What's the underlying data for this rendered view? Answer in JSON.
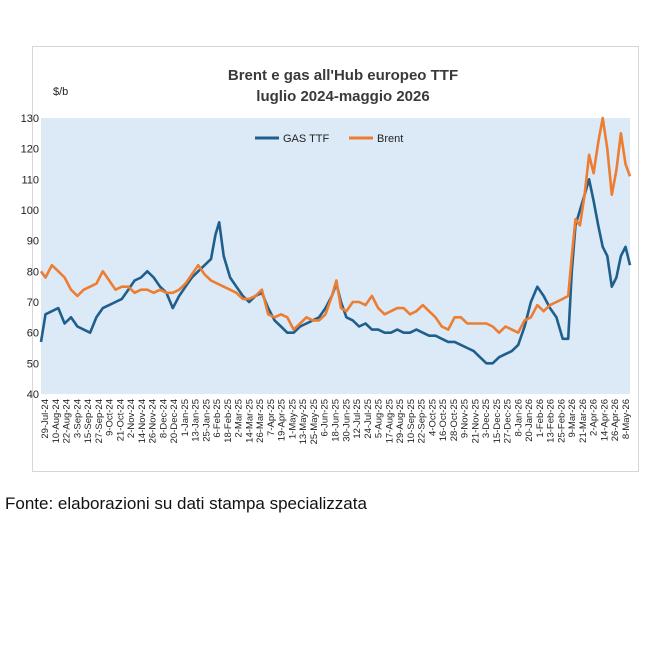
{
  "chart_data": {
    "type": "line",
    "title": "Brent e gas all'Hub europeo TTF",
    "subtitle": "luglio 2024-maggio 2026",
    "ylabel": "$/b",
    "ylim": [
      40,
      130
    ],
    "yticks": [
      40,
      50,
      60,
      70,
      80,
      90,
      100,
      110,
      120,
      130
    ],
    "xlim": [
      "2024-07-29",
      "2026-05-08"
    ],
    "xtick_labels": [
      "29-Jul-24",
      "10-Aug-24",
      "22-Aug-24",
      "3-Sep-24",
      "15-Sep-24",
      "27-Sep-24",
      "9-Oct-24",
      "21-Oct-24",
      "2-Nov-24",
      "14-Nov-24",
      "26-Nov-24",
      "8-Dec-24",
      "20-Dec-24",
      "1-Jan-25",
      "13-Jan-25",
      "25-Jan-25",
      "6-Feb-25",
      "18-Feb-25",
      "2-Mar-25",
      "14-Mar-25",
      "26-Mar-25",
      "7-Apr-25",
      "19-Apr-25",
      "1-May-25",
      "13-May-25",
      "25-May-25",
      "6-Jun-25",
      "18-Jun-25",
      "30-Jun-25",
      "12-Jul-25",
      "24-Jul-25",
      "5-Aug-25",
      "17-Aug-25",
      "29-Aug-25",
      "10-Sep-25",
      "22-Sep-25",
      "4-Oct-25",
      "16-Oct-25",
      "28-Oct-25",
      "9-Nov-25",
      "21-Nov-25",
      "3-Dec-25",
      "15-Dec-25",
      "27-Dec-25",
      "8-Jan-26",
      "20-Jan-26",
      "1-Feb-26",
      "13-Feb-26",
      "25-Feb-26",
      "9-Mar-26",
      "21-Mar-26",
      "2-Apr-26",
      "14-Apr-26",
      "26-Apr-26",
      "8-May-26"
    ],
    "legend_position": "top-center",
    "grid": false,
    "series": [
      {
        "name": "GAS TTF",
        "color": "#1f5f8b",
        "points": [
          [
            "2024-07-29",
            57
          ],
          [
            "2024-08-03",
            66
          ],
          [
            "2024-08-10",
            67
          ],
          [
            "2024-08-17",
            68
          ],
          [
            "2024-08-24",
            63
          ],
          [
            "2024-08-31",
            65
          ],
          [
            "2024-09-07",
            62
          ],
          [
            "2024-09-14",
            61
          ],
          [
            "2024-09-21",
            60
          ],
          [
            "2024-09-28",
            65
          ],
          [
            "2024-10-05",
            68
          ],
          [
            "2024-10-12",
            69
          ],
          [
            "2024-10-19",
            70
          ],
          [
            "2024-10-26",
            71
          ],
          [
            "2024-11-02",
            74
          ],
          [
            "2024-11-09",
            77
          ],
          [
            "2024-11-16",
            78
          ],
          [
            "2024-11-23",
            80
          ],
          [
            "2024-11-30",
            78
          ],
          [
            "2024-12-07",
            75
          ],
          [
            "2024-12-14",
            73
          ],
          [
            "2024-12-21",
            68
          ],
          [
            "2024-12-28",
            72
          ],
          [
            "2025-01-04",
            75
          ],
          [
            "2025-01-11",
            78
          ],
          [
            "2025-01-18",
            80
          ],
          [
            "2025-01-25",
            82
          ],
          [
            "2025-02-01",
            84
          ],
          [
            "2025-02-06",
            92
          ],
          [
            "2025-02-10",
            96
          ],
          [
            "2025-02-15",
            85
          ],
          [
            "2025-02-22",
            78
          ],
          [
            "2025-03-01",
            75
          ],
          [
            "2025-03-08",
            72
          ],
          [
            "2025-03-15",
            70
          ],
          [
            "2025-03-22",
            72
          ],
          [
            "2025-03-29",
            73
          ],
          [
            "2025-04-05",
            68
          ],
          [
            "2025-04-12",
            64
          ],
          [
            "2025-04-19",
            62
          ],
          [
            "2025-04-26",
            60
          ],
          [
            "2025-05-03",
            60
          ],
          [
            "2025-05-10",
            62
          ],
          [
            "2025-05-17",
            63
          ],
          [
            "2025-05-24",
            64
          ],
          [
            "2025-05-31",
            65
          ],
          [
            "2025-06-07",
            68
          ],
          [
            "2025-06-14",
            72
          ],
          [
            "2025-06-19",
            76
          ],
          [
            "2025-06-24",
            70
          ],
          [
            "2025-06-30",
            65
          ],
          [
            "2025-07-07",
            64
          ],
          [
            "2025-07-14",
            62
          ],
          [
            "2025-07-21",
            63
          ],
          [
            "2025-07-28",
            61
          ],
          [
            "2025-08-04",
            61
          ],
          [
            "2025-08-11",
            60
          ],
          [
            "2025-08-18",
            60
          ],
          [
            "2025-08-25",
            61
          ],
          [
            "2025-09-01",
            60
          ],
          [
            "2025-09-08",
            60
          ],
          [
            "2025-09-15",
            61
          ],
          [
            "2025-09-22",
            60
          ],
          [
            "2025-09-29",
            59
          ],
          [
            "2025-10-06",
            59
          ],
          [
            "2025-10-13",
            58
          ],
          [
            "2025-10-20",
            57
          ],
          [
            "2025-10-27",
            57
          ],
          [
            "2025-11-03",
            56
          ],
          [
            "2025-11-10",
            55
          ],
          [
            "2025-11-17",
            54
          ],
          [
            "2025-11-24",
            52
          ],
          [
            "2025-12-01",
            50
          ],
          [
            "2025-12-08",
            50
          ],
          [
            "2025-12-15",
            52
          ],
          [
            "2025-12-22",
            53
          ],
          [
            "2025-12-29",
            54
          ],
          [
            "2026-01-05",
            56
          ],
          [
            "2026-01-12",
            62
          ],
          [
            "2026-01-19",
            70
          ],
          [
            "2026-01-26",
            75
          ],
          [
            "2026-02-02",
            72
          ],
          [
            "2026-02-09",
            68
          ],
          [
            "2026-02-16",
            65
          ],
          [
            "2026-02-23",
            58
          ],
          [
            "2026-03-01",
            58
          ],
          [
            "2026-03-05",
            80
          ],
          [
            "2026-03-09",
            95
          ],
          [
            "2026-03-14",
            100
          ],
          [
            "2026-03-19",
            105
          ],
          [
            "2026-03-24",
            110
          ],
          [
            "2026-03-29",
            103
          ],
          [
            "2026-04-03",
            95
          ],
          [
            "2026-04-08",
            88
          ],
          [
            "2026-04-13",
            85
          ],
          [
            "2026-04-18",
            75
          ],
          [
            "2026-04-23",
            78
          ],
          [
            "2026-04-28",
            85
          ],
          [
            "2026-05-03",
            88
          ],
          [
            "2026-05-08",
            82
          ]
        ]
      },
      {
        "name": "Brent",
        "color": "#ed7d31",
        "points": [
          [
            "2024-07-29",
            80
          ],
          [
            "2024-08-03",
            78
          ],
          [
            "2024-08-10",
            82
          ],
          [
            "2024-08-17",
            80
          ],
          [
            "2024-08-24",
            78
          ],
          [
            "2024-08-31",
            74
          ],
          [
            "2024-09-07",
            72
          ],
          [
            "2024-09-14",
            74
          ],
          [
            "2024-09-21",
            75
          ],
          [
            "2024-09-28",
            76
          ],
          [
            "2024-10-05",
            80
          ],
          [
            "2024-10-12",
            77
          ],
          [
            "2024-10-19",
            74
          ],
          [
            "2024-10-26",
            75
          ],
          [
            "2024-11-02",
            75
          ],
          [
            "2024-11-09",
            73
          ],
          [
            "2024-11-16",
            74
          ],
          [
            "2024-11-23",
            74
          ],
          [
            "2024-11-30",
            73
          ],
          [
            "2024-12-07",
            74
          ],
          [
            "2024-12-14",
            73
          ],
          [
            "2024-12-21",
            73
          ],
          [
            "2024-12-28",
            74
          ],
          [
            "2025-01-04",
            76
          ],
          [
            "2025-01-11",
            79
          ],
          [
            "2025-01-18",
            82
          ],
          [
            "2025-01-25",
            79
          ],
          [
            "2025-02-01",
            77
          ],
          [
            "2025-02-08",
            76
          ],
          [
            "2025-02-15",
            75
          ],
          [
            "2025-02-22",
            74
          ],
          [
            "2025-03-01",
            73
          ],
          [
            "2025-03-08",
            71
          ],
          [
            "2025-03-15",
            71
          ],
          [
            "2025-03-22",
            72
          ],
          [
            "2025-03-29",
            74
          ],
          [
            "2025-04-05",
            66
          ],
          [
            "2025-04-12",
            65
          ],
          [
            "2025-04-19",
            66
          ],
          [
            "2025-04-26",
            65
          ],
          [
            "2025-05-03",
            61
          ],
          [
            "2025-05-10",
            63
          ],
          [
            "2025-05-17",
            65
          ],
          [
            "2025-05-24",
            64
          ],
          [
            "2025-05-31",
            64
          ],
          [
            "2025-06-07",
            66
          ],
          [
            "2025-06-14",
            72
          ],
          [
            "2025-06-19",
            77
          ],
          [
            "2025-06-24",
            68
          ],
          [
            "2025-06-30",
            67
          ],
          [
            "2025-07-07",
            70
          ],
          [
            "2025-07-14",
            70
          ],
          [
            "2025-07-21",
            69
          ],
          [
            "2025-07-28",
            72
          ],
          [
            "2025-08-04",
            68
          ],
          [
            "2025-08-11",
            66
          ],
          [
            "2025-08-18",
            67
          ],
          [
            "2025-08-25",
            68
          ],
          [
            "2025-09-01",
            68
          ],
          [
            "2025-09-08",
            66
          ],
          [
            "2025-09-15",
            67
          ],
          [
            "2025-09-22",
            69
          ],
          [
            "2025-09-29",
            67
          ],
          [
            "2025-10-06",
            65
          ],
          [
            "2025-10-13",
            62
          ],
          [
            "2025-10-20",
            61
          ],
          [
            "2025-10-27",
            65
          ],
          [
            "2025-11-03",
            65
          ],
          [
            "2025-11-10",
            63
          ],
          [
            "2025-11-17",
            63
          ],
          [
            "2025-11-24",
            63
          ],
          [
            "2025-12-01",
            63
          ],
          [
            "2025-12-08",
            62
          ],
          [
            "2025-12-15",
            60
          ],
          [
            "2025-12-22",
            62
          ],
          [
            "2025-12-29",
            61
          ],
          [
            "2026-01-05",
            60
          ],
          [
            "2026-01-12",
            64
          ],
          [
            "2026-01-19",
            65
          ],
          [
            "2026-01-26",
            69
          ],
          [
            "2026-02-02",
            67
          ],
          [
            "2026-02-09",
            69
          ],
          [
            "2026-02-16",
            70
          ],
          [
            "2026-02-23",
            71
          ],
          [
            "2026-03-01",
            72
          ],
          [
            "2026-03-05",
            85
          ],
          [
            "2026-03-09",
            97
          ],
          [
            "2026-03-14",
            95
          ],
          [
            "2026-03-19",
            105
          ],
          [
            "2026-03-24",
            118
          ],
          [
            "2026-03-29",
            112
          ],
          [
            "2026-04-03",
            122
          ],
          [
            "2026-04-08",
            130
          ],
          [
            "2026-04-13",
            120
          ],
          [
            "2026-04-18",
            105
          ],
          [
            "2026-04-23",
            113
          ],
          [
            "2026-04-28",
            125
          ],
          [
            "2026-05-03",
            115
          ],
          [
            "2026-05-08",
            111
          ]
        ]
      }
    ]
  },
  "source": "Fonte: elaborazioni su dati stampa specializzata"
}
